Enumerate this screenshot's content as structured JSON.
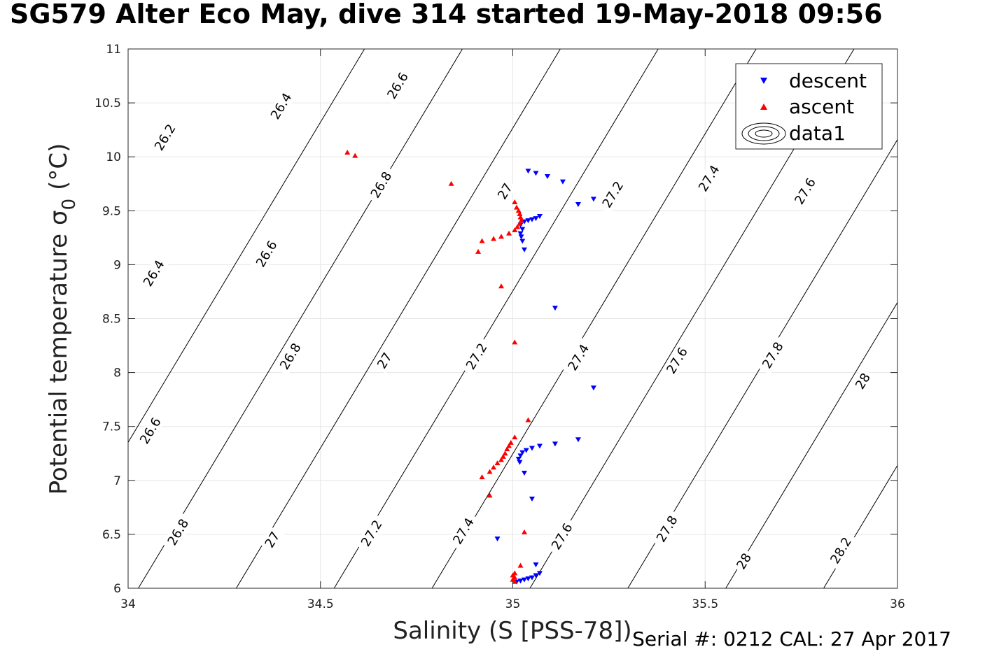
{
  "title": "SG579 Alter Eco May, dive 314 started 19-May-2018 09:56",
  "footer": "Serial #: 0212  CAL: 27 Apr 2017",
  "chart_data": {
    "type": "scatter",
    "title": "SG579 Alter Eco May, dive 314 started 19-May-2018 09:56",
    "xlabel": "Salinity (S [PSS-78])",
    "ylabel": "Potential temperature",
    "ylabel_symbol": "σ",
    "ylabel_subscript": "0",
    "ylabel_unit": "(°C)",
    "xlim": [
      34,
      36
    ],
    "ylim": [
      6,
      11
    ],
    "xticks": [
      34,
      34.5,
      35,
      35.5,
      36
    ],
    "xtick_labels": [
      "34",
      "34.5",
      "35",
      "35.5",
      "36"
    ],
    "yticks": [
      6,
      6.5,
      7,
      7.5,
      8,
      8.5,
      9,
      9.5,
      10,
      10.5,
      11
    ],
    "ytick_labels": [
      "6",
      "6.5",
      "7",
      "7.5",
      "8",
      "8.5",
      "9",
      "9.5",
      "10",
      "10.5",
      "11"
    ],
    "grid": true,
    "legend": {
      "position": "top-right",
      "entries": [
        "descent",
        "ascent",
        "data1"
      ]
    },
    "colors": {
      "descent": "#0000ff",
      "ascent": "#ff0000",
      "contour": "#000000",
      "grid": "#e6e6e6"
    },
    "contours": {
      "levels": [
        26.2,
        26.4,
        26.6,
        26.8,
        27,
        27.2,
        27.4,
        27.6,
        27.8,
        28,
        28.2
      ],
      "slope_dS_per_degC": 0.1685,
      "level_spacing_dS": 0.2545,
      "reference": {
        "level": 27.0,
        "salinity": 34.79,
        "temperature": 6
      },
      "labels": [
        {
          "text": "26.2",
          "s": 34.096,
          "t": 10.18
        },
        {
          "text": "26.4",
          "s": 34.398,
          "t": 10.47
        },
        {
          "text": "26.6",
          "s": 34.701,
          "t": 10.66
        },
        {
          "text": "26.4",
          "s": 34.067,
          "t": 8.92
        },
        {
          "text": "26.6",
          "s": 34.36,
          "t": 9.1
        },
        {
          "text": "26.8",
          "s": 34.658,
          "t": 9.74
        },
        {
          "text": "27",
          "s": 34.98,
          "t": 9.68
        },
        {
          "text": "27.2",
          "s": 35.26,
          "t": 9.65
        },
        {
          "text": "27.4",
          "s": 35.51,
          "t": 9.8
        },
        {
          "text": "27.6",
          "s": 35.76,
          "t": 9.68
        },
        {
          "text": "26.6",
          "s": 34.058,
          "t": 7.46
        },
        {
          "text": "26.8",
          "s": 34.422,
          "t": 8.15
        },
        {
          "text": "27",
          "s": 34.667,
          "t": 8.11
        },
        {
          "text": "27.2",
          "s": 34.906,
          "t": 8.15
        },
        {
          "text": "27.4",
          "s": 35.171,
          "t": 8.14
        },
        {
          "text": "27.6",
          "s": 35.427,
          "t": 8.11
        },
        {
          "text": "27.8",
          "s": 35.676,
          "t": 8.16
        },
        {
          "text": "28",
          "s": 35.91,
          "t": 7.92
        },
        {
          "text": "26.8",
          "s": 34.13,
          "t": 6.52
        },
        {
          "text": "27",
          "s": 34.375,
          "t": 6.45
        },
        {
          "text": "27.2",
          "s": 34.633,
          "t": 6.51
        },
        {
          "text": "27.4",
          "s": 34.872,
          "t": 6.53
        },
        {
          "text": "27.6",
          "s": 35.128,
          "t": 6.48
        },
        {
          "text": "27.8",
          "s": 35.401,
          "t": 6.55
        },
        {
          "text": "28",
          "s": 35.601,
          "t": 6.25
        },
        {
          "text": "28.2",
          "s": 35.853,
          "t": 6.35
        }
      ]
    },
    "series": [
      {
        "name": "descent",
        "marker": "triangle-down",
        "color": "#0000ff",
        "points": [
          [
            35.04,
            9.87
          ],
          [
            35.06,
            9.85
          ],
          [
            35.09,
            9.82
          ],
          [
            35.13,
            9.77
          ],
          [
            35.17,
            9.56
          ],
          [
            35.21,
            9.61
          ],
          [
            35.07,
            9.45
          ],
          [
            35.06,
            9.43
          ],
          [
            35.05,
            9.42
          ],
          [
            35.04,
            9.41
          ],
          [
            35.03,
            9.4
          ],
          [
            35.02,
            9.37
          ],
          [
            35.025,
            9.33
          ],
          [
            35.02,
            9.29
          ],
          [
            35.022,
            9.26
          ],
          [
            35.025,
            9.22
          ],
          [
            35.03,
            9.14
          ],
          [
            35.11,
            8.6
          ],
          [
            35.21,
            7.86
          ],
          [
            35.17,
            7.38
          ],
          [
            35.11,
            7.34
          ],
          [
            35.07,
            7.32
          ],
          [
            35.05,
            7.3
          ],
          [
            35.035,
            7.28
          ],
          [
            35.025,
            7.26
          ],
          [
            35.02,
            7.23
          ],
          [
            35.015,
            7.2
          ],
          [
            35.018,
            7.17
          ],
          [
            35.03,
            7.07
          ],
          [
            35.05,
            6.83
          ],
          [
            34.96,
            6.46
          ],
          [
            35.06,
            6.22
          ],
          [
            35.07,
            6.14
          ],
          [
            35.06,
            6.12
          ],
          [
            35.05,
            6.1
          ],
          [
            35.04,
            6.09
          ],
          [
            35.03,
            6.08
          ],
          [
            35.02,
            6.07
          ],
          [
            35.01,
            6.06
          ]
        ]
      },
      {
        "name": "ascent",
        "marker": "triangle-up",
        "color": "#ff0000",
        "points": [
          [
            34.57,
            10.04
          ],
          [
            34.59,
            10.01
          ],
          [
            34.84,
            9.75
          ],
          [
            35.005,
            9.58
          ],
          [
            35.01,
            9.53
          ],
          [
            35.015,
            9.5
          ],
          [
            35.018,
            9.47
          ],
          [
            35.02,
            9.44
          ],
          [
            35.022,
            9.41
          ],
          [
            35.018,
            9.38
          ],
          [
            35.012,
            9.35
          ],
          [
            35.005,
            9.32
          ],
          [
            34.99,
            9.29
          ],
          [
            34.97,
            9.26
          ],
          [
            34.95,
            9.24
          ],
          [
            34.92,
            9.22
          ],
          [
            34.91,
            9.12
          ],
          [
            34.97,
            8.8
          ],
          [
            35.005,
            8.28
          ],
          [
            35.04,
            7.56
          ],
          [
            35.005,
            7.4
          ],
          [
            34.995,
            7.35
          ],
          [
            34.99,
            7.32
          ],
          [
            34.985,
            7.29
          ],
          [
            34.98,
            7.25
          ],
          [
            34.975,
            7.22
          ],
          [
            34.97,
            7.19
          ],
          [
            34.96,
            7.16
          ],
          [
            34.95,
            7.12
          ],
          [
            34.94,
            7.08
          ],
          [
            34.92,
            7.03
          ],
          [
            34.94,
            6.86
          ],
          [
            35.03,
            6.52
          ],
          [
            35.02,
            6.21
          ],
          [
            35.005,
            6.14
          ],
          [
            35.0,
            6.12
          ],
          [
            35.005,
            6.1
          ],
          [
            35.0,
            6.08
          ],
          [
            35.005,
            6.06
          ]
        ]
      }
    ]
  }
}
